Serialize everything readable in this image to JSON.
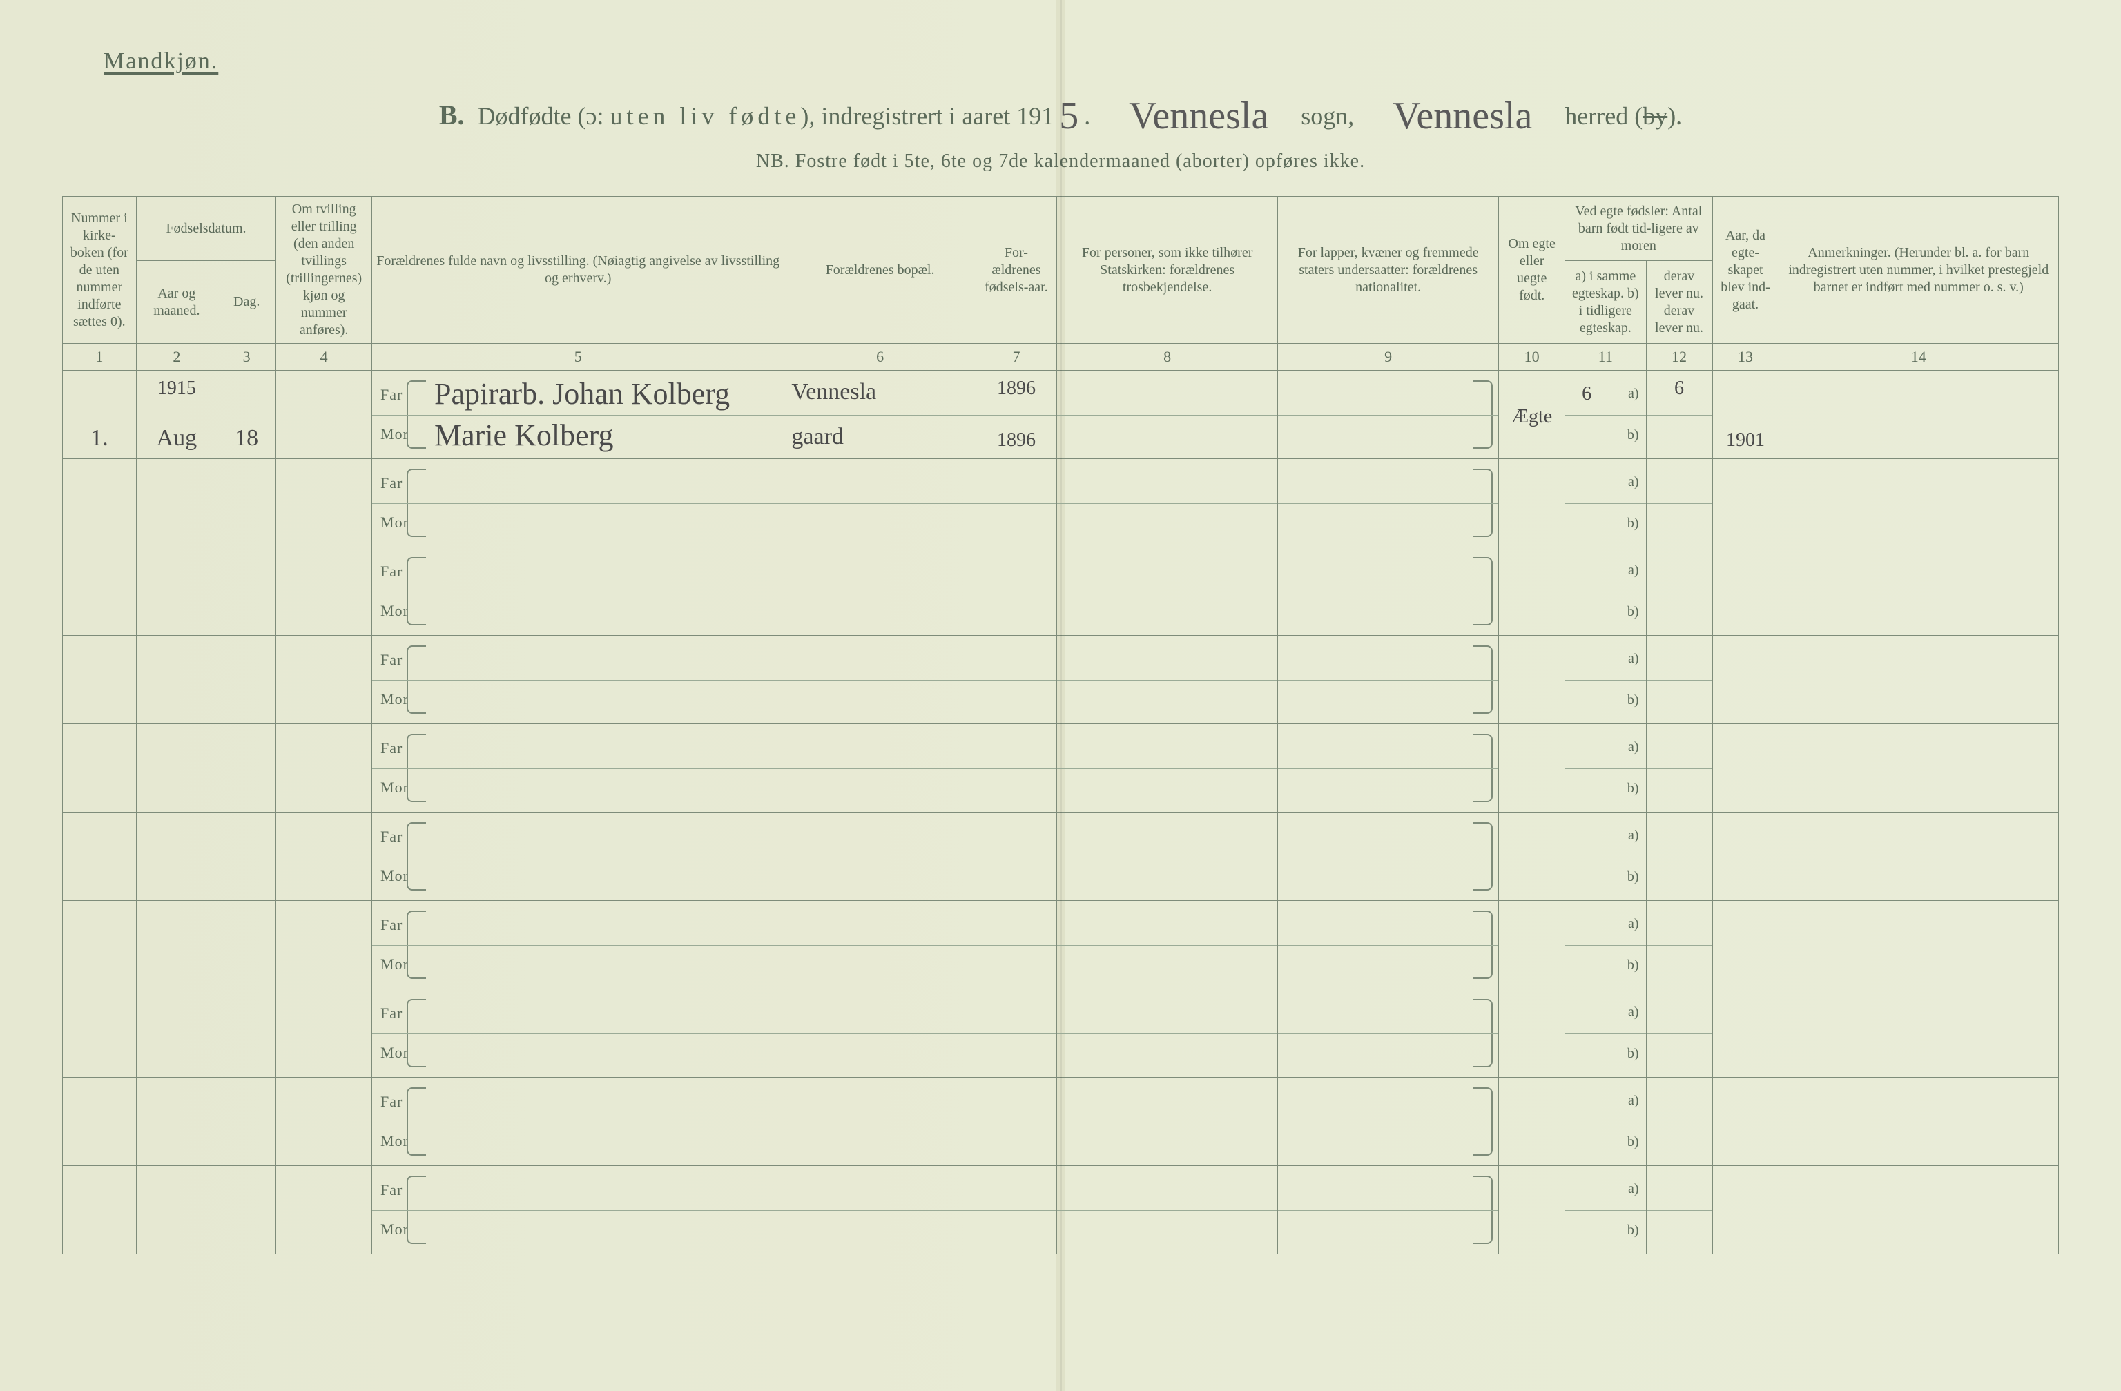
{
  "colors": {
    "paper": "#e8ead6",
    "ink_print": "#5c6b5a",
    "ink_hand": "#4a4a4a",
    "rule": "#7e8c7a",
    "fold": "rgba(0,0,0,0.06)"
  },
  "typography": {
    "print_font": "Georgia, 'Times New Roman', serif",
    "hand_font": "'Brush Script MT', cursive",
    "title_fontsize_pt": 36,
    "header_fontsize_pt": 20,
    "body_fontsize_pt": 22,
    "hand_fontsize_pt": 44
  },
  "header": {
    "gender": "Mandkjøn.",
    "section_letter": "B.",
    "title_pre": "Dødfødte (ɔ: ",
    "title_emph": "uten liv fødte",
    "title_post": "), indregistrert i aaret 191",
    "year_suffix_hand": "5",
    "period": ".",
    "sogn_hand": "Vennesla",
    "sogn_label": "sogn,",
    "herred_hand": "Vennesla",
    "herred_label": "herred (",
    "herred_struck": "by",
    "herred_close": ").",
    "nb": "NB.  Fostre født i 5te, 6te og 7de kalendermaaned (aborter) opføres ikke."
  },
  "columns": {
    "col1": "Nummer i kirke-boken (for de uten nummer indførte sættes 0).",
    "col23_top": "Fødselsdatum.",
    "col2": "Aar og maaned.",
    "col3": "Dag.",
    "col4": "Om tvilling eller trilling (den anden tvillings (trillingernes) kjøn og nummer anføres).",
    "col5": "Forældrenes fulde navn og livsstilling.\n(Nøiagtig angivelse av livsstilling og erhverv.)",
    "col6": "Forældrenes bopæl.",
    "col7": "For-ældrenes fødsels-aar.",
    "col8": "For personer, som ikke tilhører Statskirken:\nforældrenes trosbekjendelse.",
    "col9": "For lapper, kvæner og fremmede staters undersaatter:\nforældrenes nationalitet.",
    "col10": "Om egte eller uegte født.",
    "col1112_top": "Ved egte fødsler:\nAntal barn født tid-ligere av moren",
    "col11": "a) i samme egteskap.\nb) i tidligere egteskap.",
    "col12": "derav lever nu.\nderav lever nu.",
    "col13": "Aar, da egte-skapet blev ind-gaat.",
    "col14": "Anmerkninger.\n(Herunder bl. a. for barn indregistrert uten nummer, i hvilket prestegjeld barnet er indført med nummer o. s. v.)"
  },
  "colnums": [
    "1",
    "2",
    "3",
    "4",
    "5",
    "6",
    "7",
    "8",
    "9",
    "10",
    "11",
    "12",
    "13",
    "14"
  ],
  "labels": {
    "far": "Far",
    "mor": "Mor",
    "a": "a)",
    "b": "b)"
  },
  "rows": [
    {
      "num": "1.",
      "year_hand": "1915",
      "month_hand": "Aug",
      "day_hand": "18",
      "twins": "",
      "far_name": "Papirarb. Johan Kolberg",
      "mor_name": "Marie Kolberg",
      "bopal_top": "Vennesla",
      "bopal_bot": "gaard",
      "far_birth": "1896",
      "mor_birth": "1896",
      "tros": "",
      "nation": "",
      "egte": "Ægte",
      "c11a": "6",
      "c12a": "6",
      "c11b": "",
      "c12b": "",
      "c13": "1901",
      "anm": ""
    },
    {},
    {},
    {},
    {},
    {},
    {},
    {},
    {},
    {}
  ]
}
